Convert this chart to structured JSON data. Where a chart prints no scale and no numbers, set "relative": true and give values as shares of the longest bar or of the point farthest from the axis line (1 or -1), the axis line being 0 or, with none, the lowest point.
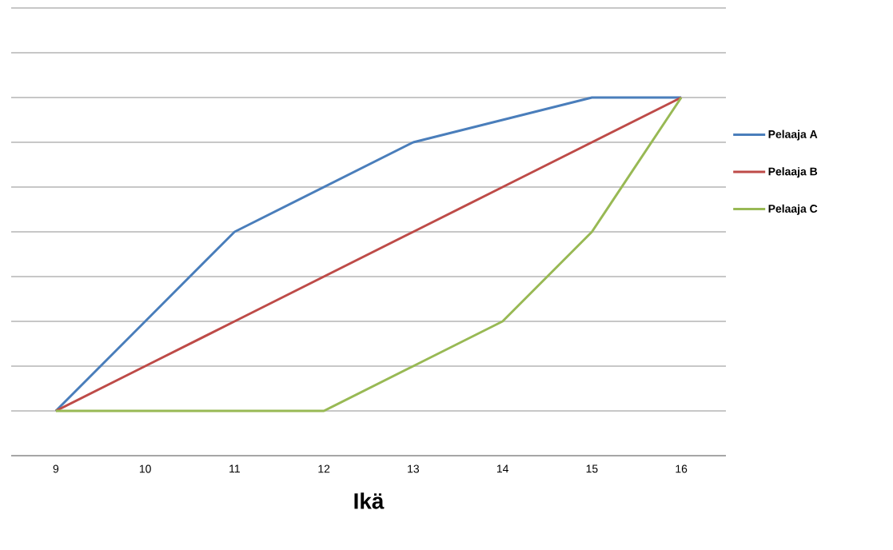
{
  "chart_data": {
    "type": "line",
    "relative": true,
    "xlabel": "Ikä",
    "categories": [
      "9",
      "10",
      "11",
      "12",
      "13",
      "14",
      "15",
      "16"
    ],
    "series": [
      {
        "name": "Pelaaja A",
        "color": "#4a7ebb",
        "values": [
          0.125,
          0.375,
          0.625,
          0.75,
          0.875,
          0.9375,
          1,
          1
        ]
      },
      {
        "name": "Pelaaja B",
        "color": "#be4b48",
        "values": [
          0.125,
          0.25,
          0.375,
          0.5,
          0.625,
          0.75,
          0.875,
          1
        ]
      },
      {
        "name": "Pelaaja C",
        "color": "#98b954",
        "values": [
          0.125,
          0.125,
          0.125,
          0.125,
          0.25,
          0.375,
          0.625,
          1
        ]
      }
    ],
    "grid": "y",
    "legend": "right",
    "marker": "none",
    "line_style": "solid"
  }
}
